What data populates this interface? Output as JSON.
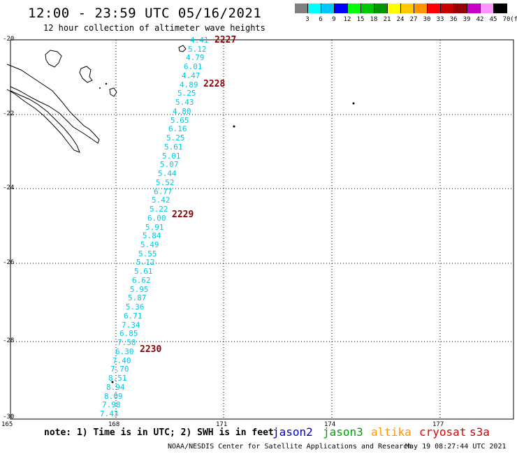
{
  "header": {
    "title": "12:00 - 23:59 UTC 05/16/2021",
    "subtitle": "12 hour collection of altimeter wave heights"
  },
  "colorbar": {
    "labels": [
      "3",
      "6",
      "9",
      "12",
      "15",
      "18",
      "21",
      "24",
      "27",
      "30",
      "33",
      "36",
      "39",
      "42",
      "45",
      "70"
    ],
    "unit": "(ft)",
    "colors": [
      "#808080",
      "#00ffff",
      "#00c8ff",
      "#0000ff",
      "#00ff00",
      "#00c800",
      "#009600",
      "#ffff00",
      "#ffc800",
      "#ff9600",
      "#ff0000",
      "#c80000",
      "#960000",
      "#c800c8",
      "#ff96ff",
      "#000000"
    ]
  },
  "map": {
    "lat_labels": [
      "-20",
      "-22",
      "-24",
      "-26",
      "-28",
      "-30"
    ],
    "lon_labels": [
      "165",
      "168",
      "171",
      "174",
      "177"
    ],
    "swh_color": "#00c8e8",
    "track_swh": [
      "4.41",
      "5.12",
      "4.79",
      "6.01",
      "4.47",
      "4.89",
      "5.25",
      "5.43",
      "4.80",
      "5.65",
      "6.16",
      "5.25",
      "5.61",
      "5.01",
      "5.07",
      "5.44",
      "5.52",
      "6.77",
      "5.42",
      "5.22",
      "6.00",
      "5.91",
      "5.84",
      "5.49",
      "5.55",
      "5.12",
      "5.61",
      "6.62",
      "5.95",
      "5.87",
      "5.36",
      "6.71",
      "7.34",
      "6.85",
      "7.58",
      "6.30",
      "7.40",
      "7.70",
      "8.51",
      "8.94",
      "8.09",
      "7.98",
      "7.43"
    ],
    "cycle_labels": [
      "2227",
      "2228",
      "2229",
      "2230"
    ]
  },
  "footer": {
    "note": "note: 1) Time is in UTC; 2) SWH is in feet",
    "satellites": [
      {
        "name": "jason2",
        "color": "#0000c8"
      },
      {
        "name": "jason3",
        "color": "#00a000"
      },
      {
        "name": "altika",
        "color": "#ff9600"
      },
      {
        "name": "cryosat",
        "color": "#e00000"
      },
      {
        "name": "s3a",
        "color": "#c80000"
      }
    ],
    "credit": "NOAA/NESDIS Center for Satellite Applications and Research",
    "timestamp": "May 19 08:27:44 UTC 2021"
  }
}
